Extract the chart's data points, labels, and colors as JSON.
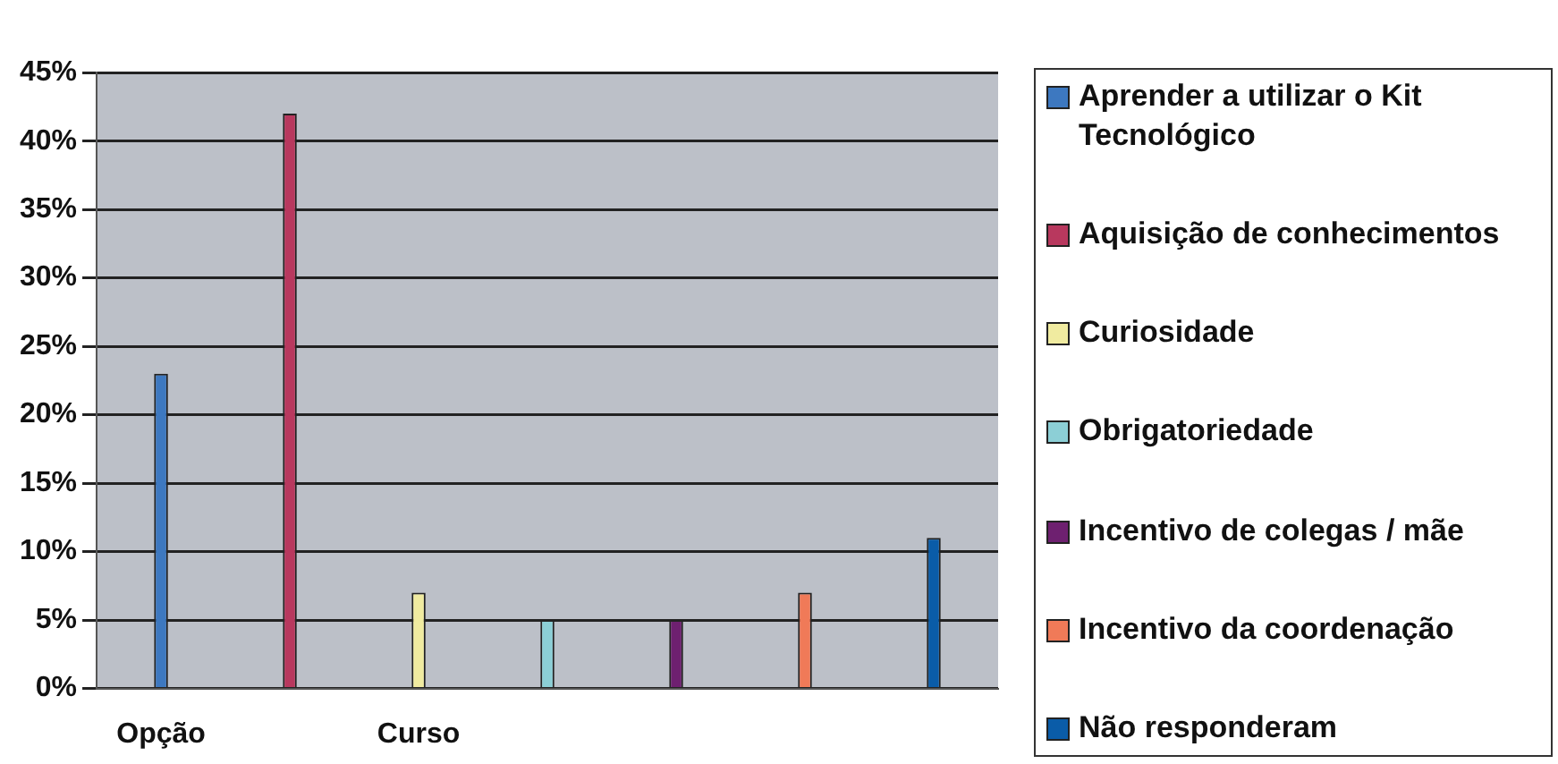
{
  "chart_data": {
    "type": "bar",
    "categories": [
      "Opção",
      null,
      "Curso",
      null,
      null,
      null,
      null
    ],
    "series": [
      {
        "name": "Aprender a utilizar o Kit Tecnológico",
        "color": "#3d78c0",
        "values": [
          23,
          null,
          null,
          null,
          null,
          null,
          null
        ]
      },
      {
        "name": "Aquisição de conhecimentos",
        "color": "#b8385e",
        "values": [
          null,
          42,
          null,
          null,
          null,
          null,
          null
        ]
      },
      {
        "name": "Curiosidade",
        "color": "#f0eba0",
        "values": [
          null,
          null,
          7,
          null,
          null,
          null,
          null
        ]
      },
      {
        "name": "Obrigatoriedade",
        "color": "#8ccfd6",
        "values": [
          null,
          null,
          null,
          5,
          null,
          null,
          null
        ]
      },
      {
        "name": "Incentivo de colegas / mãe",
        "color": "#6e2070",
        "values": [
          null,
          null,
          null,
          null,
          5,
          null,
          null
        ]
      },
      {
        "name": "Incentivo da coordenação",
        "color": "#f07a58",
        "values": [
          null,
          null,
          null,
          null,
          null,
          7,
          null
        ]
      },
      {
        "name": "Não responderam",
        "color": "#0a5ca8",
        "values": [
          null,
          null,
          null,
          null,
          null,
          null,
          11
        ]
      }
    ],
    "ylim": [
      0,
      45
    ],
    "yticks": [
      {
        "value": 0,
        "label": "0%"
      },
      {
        "value": 5,
        "label": "5%"
      },
      {
        "value": 10,
        "label": "10%"
      },
      {
        "value": 15,
        "label": "15%"
      },
      {
        "value": 20,
        "label": "20%"
      },
      {
        "value": 25,
        "label": "25%"
      },
      {
        "value": 30,
        "label": "30%"
      },
      {
        "value": 35,
        "label": "35%"
      },
      {
        "value": 40,
        "label": "40%"
      },
      {
        "value": 45,
        "label": "45%"
      }
    ],
    "grid": "y",
    "legend": "right"
  }
}
